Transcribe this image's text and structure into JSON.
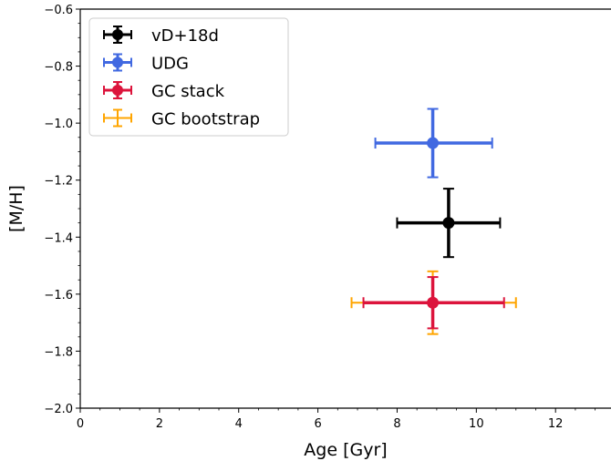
{
  "chart_data": {
    "type": "scatter",
    "title": "",
    "xlabel": "Age [Gyr]",
    "ylabel": "[M/H]",
    "xlim": [
      0,
      13.4
    ],
    "ylim": [
      -2.0,
      -0.6
    ],
    "x_ticks": [
      0,
      2,
      4,
      6,
      8,
      10,
      12
    ],
    "y_ticks": [
      -2.0,
      -1.8,
      -1.6,
      -1.4,
      -1.2,
      -1.0,
      -0.8,
      -0.6
    ],
    "grid": false,
    "legend_position": "top-left",
    "series": [
      {
        "name": "vD+18d",
        "color": "#000000",
        "marker": "filled-circle",
        "x": 9.3,
        "y": -1.35,
        "x_err": [
          1.3,
          1.3
        ],
        "y_err": [
          0.12,
          0.12
        ]
      },
      {
        "name": "UDG",
        "color": "#4169e1",
        "marker": "filled-circle",
        "x": 8.9,
        "y": -1.07,
        "x_err": [
          1.45,
          1.5
        ],
        "y_err": [
          0.12,
          0.12
        ]
      },
      {
        "name": "GC stack",
        "color": "#dc143c",
        "marker": "filled-circle",
        "x": 8.9,
        "y": -1.63,
        "x_err": [
          1.75,
          1.8
        ],
        "y_err": [
          0.09,
          0.09
        ]
      },
      {
        "name": "GC bootstrap",
        "color": "#ffa500",
        "marker": "none",
        "x": 8.9,
        "y": -1.63,
        "x_err": [
          2.05,
          2.1
        ],
        "y_err": [
          0.11,
          0.11
        ]
      }
    ]
  }
}
